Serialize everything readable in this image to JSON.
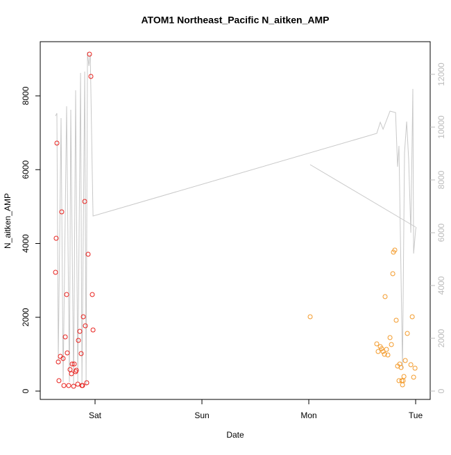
{
  "chart_data": {
    "type": "scatter",
    "title": "ATOM1 Northeast_Pacific N_aitken_AMP",
    "x_label": "Date",
    "y_label": "N_aitken_AMP",
    "xlim": [
      0.487,
      4.136
    ],
    "ylim": [
      -226,
      9468
    ],
    "y2lim": [
      -316,
      13237
    ],
    "xticks": [
      {
        "value": 1,
        "label": "Sat"
      },
      {
        "value": 2,
        "label": "Sun"
      },
      {
        "value": 3,
        "label": "Mon"
      },
      {
        "value": 4,
        "label": "Tue"
      }
    ],
    "yticks": [
      0,
      2000,
      4000,
      6000,
      8000
    ],
    "y2ticks": [
      0,
      2000,
      4000,
      6000,
      8000,
      10000,
      12000
    ],
    "y2color": "#bbbbbb",
    "series": [
      {
        "type": "line",
        "axis": "y2",
        "color": "#c8c8c8",
        "x": [
          0.63,
          0.643,
          0.656,
          0.682,
          0.701,
          0.734,
          0.76,
          0.773,
          0.799,
          0.818,
          0.838,
          0.864,
          0.877,
          0.903,
          0.916,
          0.929,
          0.942,
          0.955,
          0.974,
          0.981,
          3.636,
          3.669,
          3.695,
          3.76,
          3.812,
          3.831,
          3.844,
          3.877,
          3.896,
          3.916,
          3.935,
          3.955,
          3.974,
          3.981,
          4.0,
          4.006,
          null,
          3.013,
          4.0
        ],
        "values": [
          10421,
          10526,
          1132,
          10342,
          342,
          10789,
          342,
          10658,
          211,
          11395,
          342,
          12053,
          211,
          12105,
          211,
          12842,
          12316,
          12763,
          8237,
          6632,
          9763,
          10184,
          9921,
          10605,
          10553,
          8500,
          9289,
          868,
          9026,
          10210,
          8763,
          6000,
          11447,
          5210,
          6132,
          6211,
          null,
          8579,
          6211
        ]
      },
      {
        "type": "scatter",
        "color": "#e8201c",
        "x": [
          0.63,
          0.636,
          0.643,
          0.656,
          0.662,
          0.675,
          0.688,
          0.701,
          0.708,
          0.721,
          0.734,
          0.74,
          0.753,
          0.766,
          0.779,
          0.786,
          0.799,
          0.805,
          0.818,
          0.825,
          0.838,
          0.844,
          0.857,
          0.87,
          0.877,
          0.883,
          0.89,
          0.903,
          0.909,
          0.922,
          0.935,
          0.948,
          0.961,
          0.974,
          0.981
        ],
        "values": [
          3219,
          4141,
          6720,
          790,
          282,
          941,
          4856,
          885,
          151,
          1468,
          2616,
          1035,
          151,
          584,
          471,
          734,
          132,
          734,
          527,
          565,
          188,
          1374,
          1619,
          1016,
          151,
          151,
          2014,
          5139,
          1769,
          226,
          3708,
          9129,
          8527,
          2616,
          1656
        ]
      },
      {
        "type": "scatter",
        "color": "#f39a2a",
        "x": [
          3.013,
          3.636,
          3.649,
          3.669,
          3.682,
          3.695,
          3.708,
          3.727,
          3.74,
          3.714,
          3.76,
          3.773,
          3.786,
          3.792,
          3.805,
          3.818,
          3.831,
          3.844,
          3.851,
          3.864,
          3.87,
          3.877,
          3.883,
          3.89,
          3.903,
          3.922,
          3.955,
          3.968,
          3.981,
          3.994
        ],
        "values": [
          2014,
          1280,
          1073,
          1205,
          1148,
          1073,
          998,
          1129,
          979,
          2560,
          1449,
          1261,
          3181,
          3765,
          3821,
          1920,
          678,
          282,
          734,
          640,
          282,
          169,
          282,
          395,
          828,
          1562,
          715,
          2014,
          376,
          621
        ]
      }
    ]
  }
}
